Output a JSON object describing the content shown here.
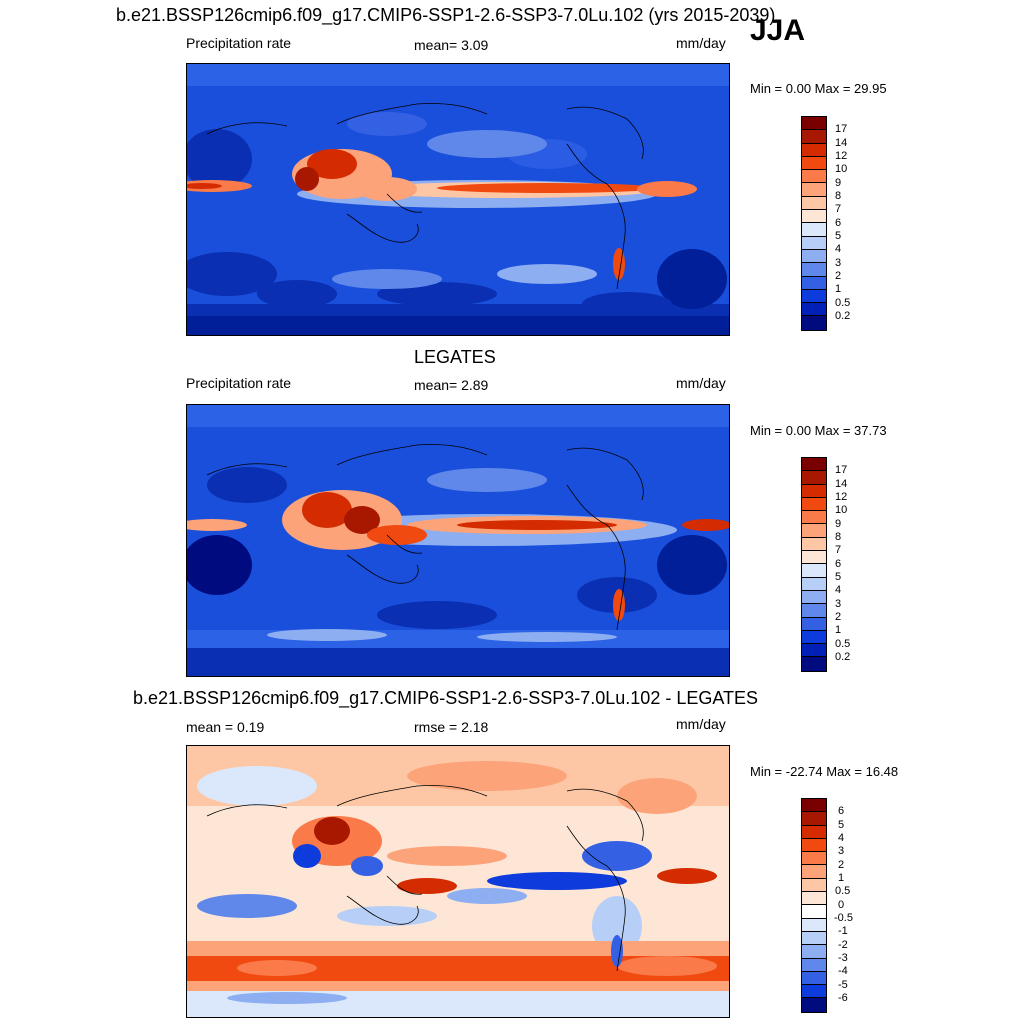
{
  "season": "JJA",
  "panels": [
    {
      "title": "b.e21.BSSP126cmip6.f09_g17.CMIP6-SSP1-2.6-SSP3-7.0Lu.102 (yrs 2015-2039)",
      "left_label": "Precipitation rate",
      "center_label": "mean=   3.09",
      "units": "mm/day",
      "minmax": "Min =   0.00 Max =  29.95",
      "colorbar": {
        "labels": [
          "17",
          "14",
          "12",
          "10",
          "9",
          "8",
          "7",
          "6",
          "5",
          "4",
          "3",
          "2",
          "1",
          "0.5",
          "0.2"
        ],
        "colors": [
          "#7a0000",
          "#a81800",
          "#d42c00",
          "#f04a10",
          "#fa7a4a",
          "#fca37a",
          "#fdc7a6",
          "#fde6d6",
          "#dbe8fb",
          "#b7cff6",
          "#8daef0",
          "#5f88ea",
          "#3461e4",
          "#0e3bdb",
          "#0020b8",
          "#000b80"
        ]
      }
    },
    {
      "title": "LEGATES",
      "left_label": "Precipitation rate",
      "center_label": "mean=   2.89",
      "units": "mm/day",
      "minmax": "Min =   0.00 Max =  37.73",
      "colorbar": {
        "labels": [
          "17",
          "14",
          "12",
          "10",
          "9",
          "8",
          "7",
          "6",
          "5",
          "4",
          "3",
          "2",
          "1",
          "0.5",
          "0.2"
        ],
        "colors": [
          "#7a0000",
          "#a81800",
          "#d42c00",
          "#f04a10",
          "#fa7a4a",
          "#fca37a",
          "#fdc7a6",
          "#fde6d6",
          "#dbe8fb",
          "#b7cff6",
          "#8daef0",
          "#5f88ea",
          "#3461e4",
          "#0e3bdb",
          "#0020b8",
          "#000b80"
        ]
      }
    },
    {
      "title": "b.e21.BSSP126cmip6.f09_g17.CMIP6-SSP1-2.6-SSP3-7.0Lu.102 - LEGATES",
      "left_label": "mean =   0.19",
      "center_label": "rmse =   2.18",
      "units": "mm/day",
      "minmax": "Min = -22.74 Max =  16.48",
      "colorbar": {
        "labels": [
          "6",
          "5",
          "4",
          "3",
          "2",
          "1",
          "0.5",
          "0",
          "-0.5",
          "-1",
          "-2",
          "-3",
          "-4",
          "-5",
          "-6"
        ],
        "colors": [
          "#7a0000",
          "#a81800",
          "#d42c00",
          "#f04a10",
          "#fa7a4a",
          "#fca37a",
          "#fdc7a6",
          "#fde6d6",
          "#ffffff",
          "#dbe8fb",
          "#b7cff6",
          "#8daef0",
          "#5f88ea",
          "#3461e4",
          "#0e3bdb",
          "#000b80"
        ]
      }
    }
  ]
}
